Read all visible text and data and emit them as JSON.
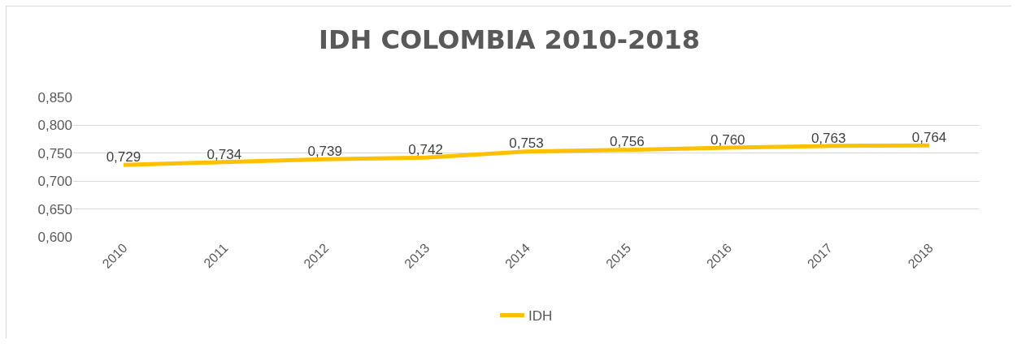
{
  "chart_data": {
    "type": "line",
    "title": "IDH COLOMBIA 2010-2018",
    "categories": [
      "2010",
      "2011",
      "2012",
      "2013",
      "2014",
      "2015",
      "2016",
      "2017",
      "2018"
    ],
    "series": [
      {
        "name": "IDH",
        "color": "#ffc000",
        "values": [
          0.729,
          0.734,
          0.739,
          0.742,
          0.753,
          0.756,
          0.76,
          0.763,
          0.764
        ],
        "value_labels": [
          "0,729",
          "0,734",
          "0,739",
          "0,742",
          "0,753",
          "0,756",
          "0,760",
          "0,763",
          "0,764"
        ]
      }
    ],
    "ylim": [
      0.6,
      0.85
    ],
    "yticks": [
      {
        "value": 0.6,
        "label": "0,600"
      },
      {
        "value": 0.65,
        "label": "0,650"
      },
      {
        "value": 0.7,
        "label": "0,700"
      },
      {
        "value": 0.75,
        "label": "0,750"
      },
      {
        "value": 0.8,
        "label": "0,800"
      },
      {
        "value": 0.85,
        "label": "0,850"
      }
    ],
    "grid": "y",
    "legend": "bottom",
    "marker": "none",
    "line_style": "solid"
  }
}
